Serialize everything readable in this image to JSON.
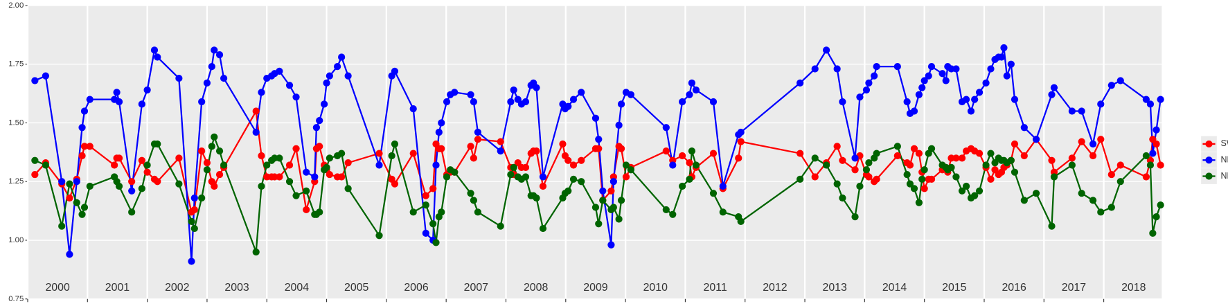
{
  "chart_data": {
    "type": "line",
    "x": [
      2000.12,
      2000.3,
      2000.57,
      2000.7,
      2000.82,
      2000.91,
      2000.95,
      2001.04,
      2001.45,
      2001.49,
      2001.53,
      2001.74,
      2001.91,
      2002.0,
      2002.12,
      2002.17,
      2002.53,
      2002.74,
      2002.79,
      2002.91,
      2003.0,
      2003.08,
      2003.12,
      2003.21,
      2003.28,
      2003.82,
      2003.91,
      2004.0,
      2004.08,
      2004.13,
      2004.21,
      2004.38,
      2004.49,
      2004.66,
      2004.8,
      2004.83,
      2004.88,
      2004.96,
      2005.0,
      2005.05,
      2005.18,
      2005.25,
      2005.36,
      2005.88,
      2006.09,
      2006.14,
      2006.45,
      2006.66,
      2006.78,
      2006.83,
      2006.88,
      2006.92,
      2007.01,
      2007.07,
      2007.14,
      2007.41,
      2007.46,
      2007.53,
      2007.91,
      2008.08,
      2008.13,
      2008.2,
      2008.26,
      2008.33,
      2008.42,
      2008.46,
      2008.51,
      2008.62,
      2008.95,
      2008.99,
      2009.04,
      2009.13,
      2009.26,
      2009.5,
      2009.55,
      2009.62,
      2009.76,
      2009.8,
      2009.89,
      2009.93,
      2010.01,
      2010.09,
      2010.68,
      2010.79,
      2010.95,
      2011.07,
      2011.11,
      2011.18,
      2011.47,
      2011.63,
      2011.89,
      2011.93,
      2012.92,
      2013.17,
      2013.36,
      2013.54,
      2013.63,
      2013.84,
      2013.92,
      2014.03,
      2014.07,
      2014.16,
      2014.2,
      2014.55,
      2014.71,
      2014.76,
      2014.83,
      2014.91,
      2014.96,
      2015.0,
      2015.07,
      2015.12,
      2015.3,
      2015.36,
      2015.39,
      2015.45,
      2015.53,
      2015.63,
      2015.7,
      2015.78,
      2015.84,
      2015.92,
      2016.03,
      2016.11,
      2016.18,
      2016.24,
      2016.29,
      2016.33,
      2016.38,
      2016.45,
      2016.51,
      2016.67,
      2016.87,
      2017.13,
      2017.17,
      2017.47,
      2017.63,
      2017.82,
      2017.95,
      2018.13,
      2018.28,
      2018.71,
      2018.78,
      2018.82,
      2018.88,
      2018.95
    ],
    "series": [
      {
        "name": "SWIR",
        "color": "#ff0000",
        "values": [
          1.28,
          1.33,
          1.24,
          1.18,
          1.26,
          1.36,
          1.4,
          1.4,
          1.32,
          1.35,
          1.35,
          1.25,
          1.34,
          1.29,
          1.26,
          1.25,
          1.35,
          1.12,
          1.13,
          1.38,
          1.33,
          1.25,
          1.23,
          1.28,
          1.31,
          1.55,
          1.36,
          1.27,
          1.27,
          1.27,
          1.27,
          1.32,
          1.39,
          1.13,
          1.25,
          1.39,
          1.4,
          1.32,
          1.3,
          1.28,
          1.27,
          1.27,
          1.33,
          1.37,
          1.26,
          1.24,
          1.37,
          1.19,
          1.22,
          1.41,
          1.39,
          1.39,
          1.28,
          1.29,
          1.29,
          1.4,
          1.35,
          1.43,
          1.42,
          1.31,
          1.28,
          1.33,
          1.31,
          1.31,
          1.37,
          1.38,
          1.38,
          1.23,
          1.41,
          1.36,
          1.34,
          1.32,
          1.34,
          1.39,
          1.39,
          1.17,
          1.21,
          1.27,
          1.4,
          1.39,
          1.27,
          1.31,
          1.38,
          1.34,
          1.36,
          1.33,
          1.27,
          1.31,
          1.37,
          1.22,
          1.35,
          1.42,
          1.37,
          1.27,
          1.33,
          1.4,
          1.34,
          1.3,
          1.36,
          1.28,
          1.27,
          1.25,
          1.26,
          1.36,
          1.33,
          1.32,
          1.39,
          1.37,
          1.29,
          1.22,
          1.26,
          1.26,
          1.3,
          1.31,
          1.29,
          1.35,
          1.35,
          1.35,
          1.38,
          1.39,
          1.38,
          1.37,
          1.31,
          1.26,
          1.3,
          1.28,
          1.29,
          1.31,
          1.32,
          1.34,
          1.41,
          1.36,
          1.43,
          1.34,
          1.29,
          1.35,
          1.42,
          1.36,
          1.43,
          1.28,
          1.32,
          1.27,
          1.34,
          1.43,
          1.41,
          1.32
        ]
      },
      {
        "name": "NDVI",
        "color": "#0000ff",
        "values": [
          1.68,
          1.7,
          1.25,
          0.94,
          1.25,
          1.48,
          1.55,
          1.6,
          1.6,
          1.63,
          1.59,
          1.21,
          1.58,
          1.64,
          1.81,
          1.78,
          1.69,
          0.91,
          1.18,
          1.59,
          1.67,
          1.74,
          1.81,
          1.79,
          1.69,
          1.46,
          1.63,
          1.69,
          1.7,
          1.71,
          1.72,
          1.66,
          1.61,
          1.29,
          1.27,
          1.48,
          1.51,
          1.58,
          1.67,
          1.7,
          1.74,
          1.78,
          1.7,
          1.32,
          1.7,
          1.72,
          1.56,
          1.03,
          1.0,
          1.32,
          1.46,
          1.5,
          1.59,
          1.62,
          1.63,
          1.62,
          1.59,
          1.46,
          1.38,
          1.59,
          1.64,
          1.6,
          1.58,
          1.59,
          1.66,
          1.67,
          1.65,
          1.27,
          1.58,
          1.56,
          1.57,
          1.6,
          1.63,
          1.52,
          1.43,
          1.21,
          0.98,
          1.25,
          1.49,
          1.58,
          1.63,
          1.62,
          1.48,
          1.32,
          1.59,
          1.62,
          1.67,
          1.64,
          1.59,
          1.23,
          1.45,
          1.46,
          1.67,
          1.73,
          1.81,
          1.73,
          1.59,
          1.35,
          1.61,
          1.64,
          1.67,
          1.7,
          1.74,
          1.74,
          1.59,
          1.54,
          1.55,
          1.62,
          1.65,
          1.68,
          1.7,
          1.74,
          1.71,
          1.68,
          1.74,
          1.73,
          1.73,
          1.59,
          1.6,
          1.55,
          1.6,
          1.63,
          1.67,
          1.73,
          1.77,
          1.78,
          1.78,
          1.82,
          1.7,
          1.75,
          1.6,
          1.48,
          1.43,
          1.62,
          1.65,
          1.55,
          1.55,
          1.41,
          1.58,
          1.66,
          1.68,
          1.6,
          1.58,
          1.37,
          1.47,
          1.6
        ]
      },
      {
        "name": "NDWI",
        "color": "#006400",
        "values": [
          1.34,
          1.32,
          1.06,
          1.24,
          1.16,
          1.11,
          1.14,
          1.23,
          1.27,
          1.25,
          1.23,
          1.12,
          1.22,
          1.32,
          1.41,
          1.41,
          1.24,
          1.08,
          1.05,
          1.18,
          1.3,
          1.4,
          1.44,
          1.38,
          1.32,
          0.95,
          1.23,
          1.32,
          1.34,
          1.35,
          1.35,
          1.25,
          1.19,
          1.21,
          1.11,
          1.11,
          1.12,
          1.3,
          1.31,
          1.35,
          1.36,
          1.37,
          1.22,
          1.02,
          1.36,
          1.41,
          1.12,
          1.15,
          1.07,
          0.99,
          1.1,
          1.12,
          1.27,
          1.3,
          1.29,
          1.2,
          1.17,
          1.12,
          1.06,
          1.28,
          1.31,
          1.27,
          1.26,
          1.27,
          1.19,
          1.19,
          1.18,
          1.05,
          1.18,
          1.2,
          1.21,
          1.26,
          1.25,
          1.14,
          1.07,
          1.17,
          1.13,
          1.14,
          1.09,
          1.17,
          1.32,
          1.3,
          1.13,
          1.11,
          1.23,
          1.26,
          1.38,
          1.32,
          1.2,
          1.12,
          1.1,
          1.08,
          1.26,
          1.35,
          1.32,
          1.24,
          1.18,
          1.1,
          1.23,
          1.3,
          1.33,
          1.35,
          1.37,
          1.4,
          1.28,
          1.24,
          1.22,
          1.16,
          1.26,
          1.3,
          1.37,
          1.39,
          1.32,
          1.31,
          1.3,
          1.31,
          1.27,
          1.21,
          1.23,
          1.18,
          1.19,
          1.21,
          1.32,
          1.37,
          1.33,
          1.35,
          1.34,
          1.34,
          1.33,
          1.34,
          1.29,
          1.17,
          1.2,
          1.06,
          1.27,
          1.32,
          1.2,
          1.17,
          1.12,
          1.14,
          1.25,
          1.36,
          1.32,
          1.03,
          1.1,
          1.15
        ]
      }
    ],
    "xlim": [
      2000,
      2018.97
    ],
    "xticks": [
      2000,
      2001,
      2002,
      2003,
      2004,
      2005,
      2006,
      2007,
      2008,
      2009,
      2010,
      2011,
      2012,
      2013,
      2014,
      2015,
      2016,
      2017,
      2018
    ],
    "ylim": [
      0.75,
      2.0
    ],
    "yticks": [
      {
        "value": 0.75,
        "label": "0.75"
      },
      {
        "value": 1.0,
        "label": "1.00"
      },
      {
        "value": 1.25,
        "label": "1.25"
      },
      {
        "value": 1.5,
        "label": "1.50"
      },
      {
        "value": 1.75,
        "label": "1.75"
      },
      {
        "value": 2.0,
        "label": "2.00"
      }
    ],
    "grid": true,
    "legend": "right"
  }
}
